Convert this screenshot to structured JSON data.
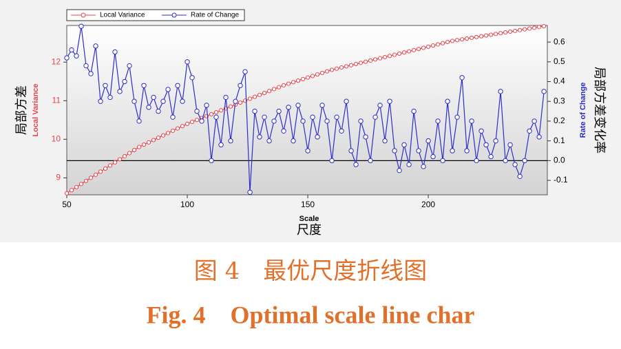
{
  "chart_data": {
    "type": "line",
    "x_label": "Scale",
    "x_label_cn": "尺度",
    "y_label": "Local Variance",
    "y_label_cn": "局部方差",
    "y2_label": "Rate of Change",
    "y2_label_cn": "局部方差变化率",
    "caption_cn": "图 4　最优尺度折线图",
    "caption_en": "Fig. 4　Optimal scale line char",
    "legend_loc": "upper left",
    "xlim": [
      50,
      249.4
    ],
    "xticks": [
      50,
      100,
      150,
      200
    ],
    "ylim": [
      8.56,
      12.95
    ],
    "yticks": [
      9,
      10,
      11,
      12
    ],
    "y2lim": [
      -0.173,
      0.684
    ],
    "y2ticks": [
      -0.1,
      {
        "value": 0,
        "label": "0.0"
      },
      0.1,
      0.2,
      0.3,
      0.4,
      0.5,
      0.6
    ],
    "x": [
      50,
      52,
      54,
      56,
      58,
      60,
      62,
      64,
      66,
      68,
      70,
      72,
      74,
      76,
      78,
      80,
      82,
      84,
      86,
      88,
      90,
      92,
      94,
      96,
      98,
      100,
      102,
      104,
      106,
      108,
      110,
      112,
      114,
      116,
      118,
      120,
      122,
      124,
      126,
      128,
      130,
      132,
      134,
      136,
      138,
      140,
      142,
      144,
      146,
      148,
      150,
      152,
      154,
      156,
      158,
      160,
      162,
      164,
      166,
      168,
      170,
      172,
      174,
      176,
      178,
      180,
      182,
      184,
      186,
      188,
      190,
      192,
      194,
      196,
      198,
      200,
      202,
      204,
      206,
      208,
      210,
      212,
      214,
      216,
      218,
      220,
      222,
      224,
      226,
      228,
      230,
      232,
      234,
      236,
      238,
      240,
      242,
      244,
      246,
      248
    ],
    "series": [
      {
        "name": "Local Variance",
        "color": "#e8434a",
        "values": [
          8.6,
          8.68,
          8.76,
          8.84,
          8.92,
          9.0,
          9.08,
          9.16,
          9.24,
          9.32,
          9.4,
          9.48,
          9.56,
          9.64,
          9.72,
          9.8,
          9.86,
          9.92,
          9.98,
          10.04,
          10.1,
          10.16,
          10.22,
          10.28,
          10.34,
          10.4,
          10.45,
          10.5,
          10.55,
          10.6,
          10.65,
          10.7,
          10.75,
          10.8,
          10.85,
          10.9,
          10.95,
          11.0,
          11.05,
          11.1,
          11.15,
          11.2,
          11.25,
          11.3,
          11.35,
          11.4,
          11.44,
          11.48,
          11.52,
          11.56,
          11.6,
          11.64,
          11.68,
          11.72,
          11.76,
          11.8,
          11.83,
          11.86,
          11.89,
          11.92,
          11.95,
          11.98,
          12.01,
          12.04,
          12.07,
          12.1,
          12.13,
          12.16,
          12.19,
          12.22,
          12.25,
          12.28,
          12.31,
          12.34,
          12.37,
          12.4,
          12.43,
          12.46,
          12.49,
          12.52,
          12.55,
          12.57,
          12.59,
          12.61,
          12.63,
          12.65,
          12.67,
          12.69,
          12.71,
          12.73,
          12.75,
          12.77,
          12.79,
          12.81,
          12.83,
          12.85,
          12.87,
          12.89,
          12.91,
          12.93
        ]
      },
      {
        "name": "Rate of Change",
        "color": "#2c2cc8",
        "axis": "y2",
        "values": [
          0.52,
          0.56,
          0.53,
          0.68,
          0.48,
          0.44,
          0.58,
          0.3,
          0.38,
          0.32,
          0.55,
          0.35,
          0.4,
          0.48,
          0.3,
          0.2,
          0.38,
          0.27,
          0.32,
          0.25,
          0.3,
          0.36,
          0.22,
          0.38,
          0.3,
          0.5,
          0.42,
          0.25,
          0.2,
          0.28,
          0.0,
          0.22,
          0.08,
          0.32,
          0.1,
          0.3,
          0.38,
          0.45,
          -0.16,
          0.25,
          0.12,
          0.22,
          0.1,
          0.2,
          0.25,
          0.15,
          0.27,
          0.1,
          0.28,
          0.2,
          0.05,
          0.22,
          0.12,
          0.28,
          0.2,
          0.0,
          0.22,
          0.15,
          0.3,
          0.05,
          -0.02,
          0.2,
          0.12,
          0.0,
          0.22,
          0.28,
          0.1,
          0.3,
          0.05,
          -0.05,
          0.08,
          -0.02,
          0.25,
          0.05,
          -0.03,
          0.1,
          0.02,
          0.2,
          0.0,
          0.3,
          0.05,
          0.22,
          0.42,
          0.05,
          0.2,
          0.0,
          0.15,
          0.08,
          0.02,
          0.1,
          0.35,
          0.0,
          0.08,
          -0.02,
          -0.08,
          0.0,
          0.15,
          0.2,
          0.12,
          0.35
        ]
      }
    ]
  }
}
